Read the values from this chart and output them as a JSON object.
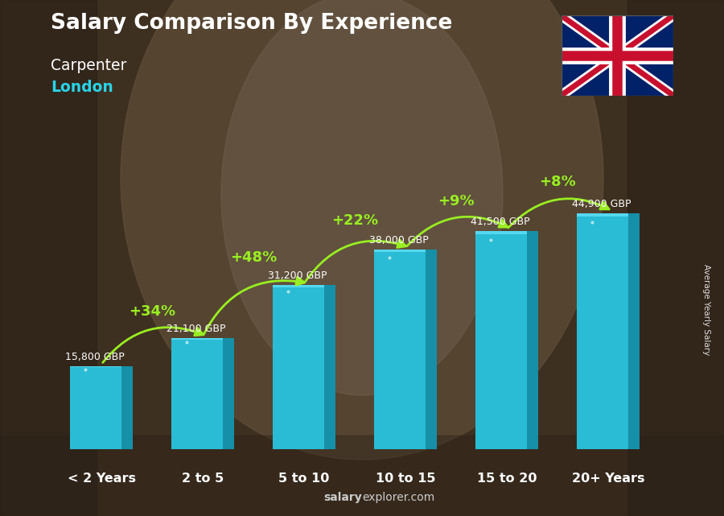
{
  "categories": [
    "< 2 Years",
    "2 to 5",
    "5 to 10",
    "10 to 15",
    "15 to 20",
    "20+ Years"
  ],
  "values": [
    15800,
    21100,
    31200,
    38000,
    41500,
    44900
  ],
  "value_labels": [
    "15,800 GBP",
    "21,100 GBP",
    "31,200 GBP",
    "38,000 GBP",
    "41,500 GBP",
    "44,900 GBP"
  ],
  "pct_changes": [
    "+34%",
    "+48%",
    "+22%",
    "+9%",
    "+8%"
  ],
  "bar_color_main": "#29bcd4",
  "bar_color_dark": "#1690a8",
  "bar_color_light": "#55d8f0",
  "title": "Salary Comparison By Experience",
  "subtitle1": "Carpenter",
  "subtitle2": "London",
  "subtitle2_color": "#29d4e8",
  "ylabel": "Average Yearly Salary",
  "source_plain": "explorer.com",
  "source_bold": "salary",
  "pct_color": "#99ee22",
  "value_label_color": "#ffffff",
  "title_color": "#ffffff",
  "subtitle1_color": "#ffffff",
  "arrow_color": "#99ee22",
  "ylim": [
    0,
    54000
  ],
  "bar_width": 0.62,
  "bg_colors": [
    "#3a2e22",
    "#5a4a36",
    "#6a5840",
    "#5a4a36",
    "#3a2e22"
  ],
  "source_color": "#cccccc"
}
